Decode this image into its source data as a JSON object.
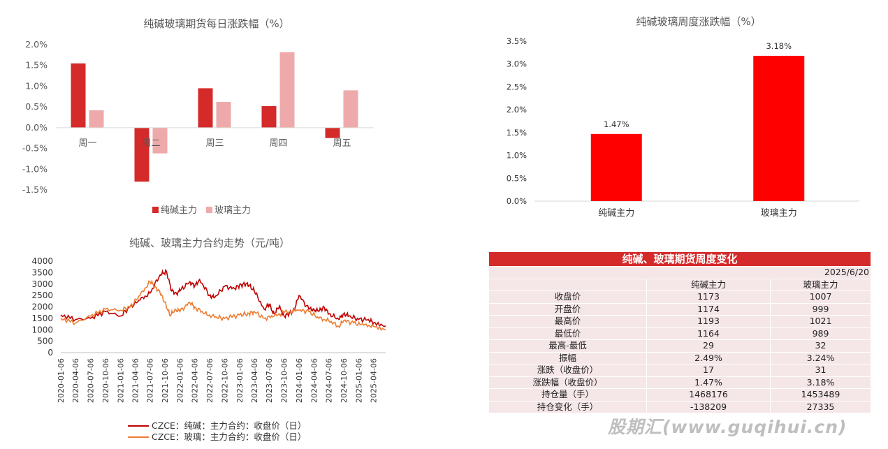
{
  "chart_data": [
    {
      "type": "bar",
      "title": "纯碱玻璃期货每日涨跌幅（%）",
      "categories": [
        "周一",
        "周二",
        "周三",
        "周四",
        "周五"
      ],
      "series": [
        {
          "name": "纯碱主力",
          "values": [
            1.55,
            -1.3,
            0.95,
            0.52,
            -0.25
          ],
          "color": "#d42a2a"
        },
        {
          "name": "玻璃主力",
          "values": [
            0.42,
            -0.62,
            0.62,
            1.82,
            0.9
          ],
          "color": "#eeaaaa"
        }
      ],
      "yticks": [
        "2.0%",
        "1.5%",
        "1.0%",
        "0.5%",
        "0.0%",
        "-0.5%",
        "-1.0%",
        "-1.5%"
      ],
      "ylim": [
        -1.5,
        2.0
      ],
      "legend": "bottom"
    },
    {
      "type": "bar",
      "title": "纯碱玻璃周度涨跌幅（%）",
      "categories": [
        "纯碱主力",
        "玻璃主力"
      ],
      "values": [
        1.47,
        3.18
      ],
      "data_labels": [
        "1.47%",
        "3.18%"
      ],
      "color": "#ff0000",
      "yticks": [
        "3.5%",
        "3.0%",
        "2.5%",
        "2.0%",
        "1.5%",
        "1.0%",
        "0.5%",
        "0.0%"
      ],
      "ylim": [
        0,
        3.5
      ]
    },
    {
      "type": "line",
      "title": "纯碱、玻璃主力合约走势（元/吨）",
      "yticks": [
        "4000",
        "3500",
        "3000",
        "2500",
        "2000",
        "1500",
        "1000",
        "500",
        "0"
      ],
      "ylim": [
        0,
        4000
      ],
      "xticks": [
        "2020-01-06",
        "2020-04-06",
        "2020-07-06",
        "2020-10-06",
        "2021-01-06",
        "2021-04-06",
        "2021-07-06",
        "2021-10-06",
        "2022-01-06",
        "2022-04-06",
        "2022-07-06",
        "2022-10-06",
        "2023-01-06",
        "2023-04-06",
        "2023-07-06",
        "2023-10-06",
        "2024-01-06",
        "2024-04-06",
        "2024-07-06",
        "2024-10-06",
        "2025-01-06",
        "2025-04-06"
      ],
      "legend": "bottom",
      "series": [
        {
          "name": "CZCE：纯碱：主力合约：收盘价（日）",
          "color": "#c00000",
          "x": [
            "2020-01-06",
            "2020-04-06",
            "2020-07-06",
            "2020-10-06",
            "2021-01-06",
            "2021-03-06",
            "2021-05-06",
            "2021-07-06",
            "2021-09-06",
            "2021-10-15",
            "2021-11-15",
            "2021-12-15",
            "2022-01-06",
            "2022-03-06",
            "2022-04-06",
            "2022-05-06",
            "2022-07-06",
            "2022-08-06",
            "2022-10-06",
            "2022-12-06",
            "2023-01-06",
            "2023-02-06",
            "2023-03-06",
            "2023-04-06",
            "2023-06-06",
            "2023-07-06",
            "2023-08-06",
            "2023-09-06",
            "2023-10-06",
            "2023-11-06",
            "2023-12-06",
            "2024-01-06",
            "2024-03-06",
            "2024-04-06",
            "2024-05-06",
            "2024-06-06",
            "2024-07-06",
            "2024-09-06",
            "2024-10-06",
            "2024-11-06",
            "2025-01-06",
            "2025-03-06",
            "2025-04-06",
            "2025-06-20"
          ],
          "y": [
            1650,
            1450,
            1500,
            1800,
            1600,
            2000,
            2300,
            2600,
            3400,
            3550,
            2700,
            2600,
            2700,
            3100,
            2900,
            3200,
            2500,
            2400,
            2900,
            2800,
            2950,
            3000,
            2950,
            2700,
            1900,
            2100,
            1700,
            2000,
            1600,
            1700,
            1850,
            2500,
            1900,
            1900,
            1800,
            2000,
            1700,
            1450,
            1700,
            1600,
            1450,
            1450,
            1300,
            1173
          ]
        },
        {
          "name": "CZCE：玻璃：主力合约：收盘价（日）",
          "color": "#ed7d31",
          "x": [
            "2020-01-06",
            "2020-04-06",
            "2020-07-06",
            "2020-10-06",
            "2021-01-06",
            "2021-03-06",
            "2021-05-06",
            "2021-07-06",
            "2021-08-06",
            "2021-09-06",
            "2021-10-06",
            "2021-11-06",
            "2021-12-06",
            "2022-01-06",
            "2022-03-06",
            "2022-04-06",
            "2022-06-06",
            "2022-08-06",
            "2022-10-06",
            "2023-01-06",
            "2023-03-06",
            "2023-04-06",
            "2023-06-06",
            "2023-08-06",
            "2023-10-06",
            "2024-01-06",
            "2024-03-06",
            "2024-05-06",
            "2024-07-06",
            "2024-09-06",
            "2024-10-06",
            "2024-12-06",
            "2025-02-06",
            "2025-04-06",
            "2025-06-20"
          ],
          "y": [
            1500,
            1300,
            1600,
            1900,
            1850,
            2000,
            2500,
            3100,
            2900,
            2600,
            2200,
            1600,
            1900,
            1800,
            2200,
            2000,
            1700,
            1550,
            1500,
            1650,
            1700,
            1800,
            1500,
            1600,
            1750,
            1850,
            1800,
            1500,
            1400,
            1150,
            1400,
            1300,
            1200,
            1150,
            1007
          ]
        }
      ]
    },
    {
      "type": "table",
      "title": "纯碱、玻璃期货周度变化",
      "date": "2025/6/20",
      "columns": [
        "",
        "纯碱主力",
        "玻璃主力"
      ],
      "rows": [
        [
          "收盘价",
          "1173",
          "1007"
        ],
        [
          "开盘价",
          "1174",
          "999"
        ],
        [
          "最高价",
          "1193",
          "1021"
        ],
        [
          "最低价",
          "1164",
          "989"
        ],
        [
          "最高-最低",
          "29",
          "32"
        ],
        [
          "振幅",
          "2.49%",
          "3.24%"
        ],
        [
          "涨跌（收盘价）",
          "17",
          "31"
        ],
        [
          "涨跌幅（收盘价）",
          "1.47%",
          "3.18%"
        ],
        [
          "持仓量（手）",
          "1468176",
          "1453489"
        ],
        [
          "持仓变化（手）",
          "-138209",
          "27335"
        ]
      ]
    }
  ],
  "watermark": "股期汇(www.guqihui.cn)"
}
